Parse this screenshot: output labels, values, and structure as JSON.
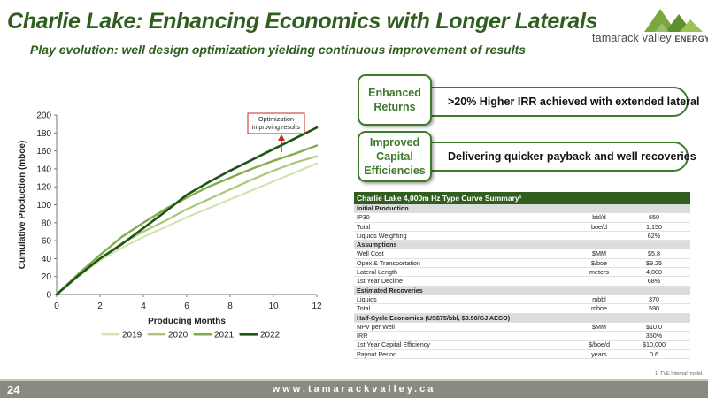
{
  "slide": {
    "title": "Charlie Lake: Enhancing Economics with Longer Laterals",
    "subtitle": "Play evolution: well design optimization yielding continuous improvement of results",
    "page_number": "24",
    "website": "www.tamarackvalley.ca",
    "footnote": "1. TVE Internal model."
  },
  "logo": {
    "name": "tamarack valley",
    "suffix": "ENERGY"
  },
  "callouts": [
    {
      "badge": "Enhanced\nReturns",
      "text": ">20% Higher IRR achieved with extended lateral"
    },
    {
      "badge": "Improved\nCapital\nEfficiencies",
      "text": "Delivering quicker payback and well recoveries"
    }
  ],
  "chart_data": {
    "type": "line",
    "xlabel": "Producing Months",
    "ylabel": "Cumulative Production (mboe)",
    "xlim": [
      0,
      12
    ],
    "ylim": [
      0,
      200
    ],
    "x_ticks": [
      0,
      2,
      4,
      6,
      8,
      10,
      12
    ],
    "y_ticks": [
      0,
      20,
      40,
      60,
      80,
      100,
      120,
      140,
      160,
      180,
      200
    ],
    "annotation": "Optimization\nimproving results",
    "legend_position": "bottom",
    "x": [
      0,
      1,
      2,
      3,
      4,
      5,
      6,
      7,
      8,
      9,
      10,
      11,
      12
    ],
    "series": [
      {
        "name": "2019",
        "color": "#d4e3b2",
        "width": 2.2,
        "values": [
          0,
          20,
          38,
          52,
          64,
          75,
          86,
          96,
          106,
          116,
          126,
          136,
          146
        ]
      },
      {
        "name": "2020",
        "color": "#a9c77a",
        "width": 2.2,
        "values": [
          0,
          22,
          40,
          57,
          70,
          82,
          95,
          106,
          117,
          128,
          138,
          147,
          154
        ]
      },
      {
        "name": "2021",
        "color": "#7fae4a",
        "width": 2.4,
        "values": [
          0,
          23,
          44,
          64,
          80,
          95,
          108,
          120,
          130,
          140,
          149,
          157,
          166
        ]
      },
      {
        "name": "2022",
        "color": "#1f5417",
        "width": 2.6,
        "values": [
          0,
          21,
          40,
          56,
          74,
          92,
          111,
          125,
          138,
          150,
          162,
          174,
          186
        ]
      }
    ]
  },
  "table": {
    "title": "Charlie Lake 4,000m Hz Type Curve Summary¹",
    "rows": [
      {
        "section": true,
        "label": "Initial Production"
      },
      {
        "label": "IP30",
        "unit": "bbl/d",
        "value": "650"
      },
      {
        "label": "Total",
        "unit": "boe/d",
        "value": "1,150"
      },
      {
        "label": "Liquids Weighting",
        "unit": "",
        "value": "62%"
      },
      {
        "section": true,
        "label": "Assumptions"
      },
      {
        "label": "Well Cost",
        "unit": "$MM",
        "value": "$5.8"
      },
      {
        "label": "Opex & Transportation",
        "unit": "$/boe",
        "value": "$9.25"
      },
      {
        "label": "Lateral Length",
        "unit": "meters",
        "value": "4,000"
      },
      {
        "label": "1st Year Decline",
        "unit": "",
        "value": "68%"
      },
      {
        "section": true,
        "label": "Estimated Recoveries"
      },
      {
        "label": "Liquids",
        "unit": "mbbl",
        "value": "370"
      },
      {
        "label": "Total",
        "unit": "mboe",
        "value": "590"
      },
      {
        "section": true,
        "label": "Half-Cycle Economics (US$75/bbl, $3.50/GJ AECO)"
      },
      {
        "label": "NPV per Well",
        "unit": "$MM",
        "value": "$10.0"
      },
      {
        "label": "IRR",
        "unit": "",
        "value": "350%"
      },
      {
        "label": "1st Year Capital Efficiency",
        "unit": "$/boe/d",
        "value": "$10,000"
      },
      {
        "label": "Payout Period",
        "unit": "years",
        "value": "0.6"
      }
    ]
  }
}
